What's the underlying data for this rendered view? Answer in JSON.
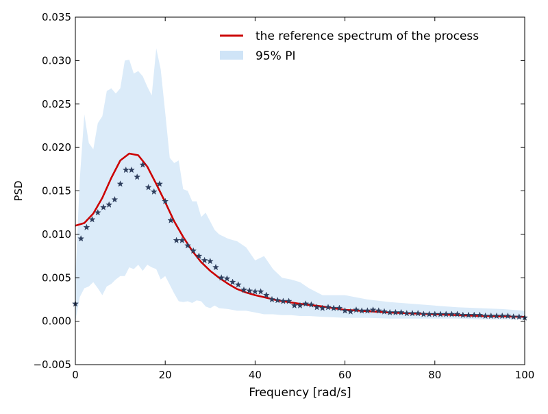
{
  "chart_data": {
    "type": "line",
    "xlabel": "Frequency [rad/s]",
    "ylabel": "PSD",
    "xlim": [
      0,
      100
    ],
    "ylim": [
      -0.005,
      0.035
    ],
    "x_ticks": [
      0,
      20,
      40,
      60,
      80,
      100
    ],
    "y_ticks": [
      -0.005,
      0.0,
      0.005,
      0.01,
      0.015,
      0.02,
      0.025,
      0.03,
      0.035
    ],
    "x_tick_labels": [
      "0",
      "20",
      "40",
      "60",
      "80",
      "100"
    ],
    "y_tick_labels": [
      "−0.005",
      "0.000",
      "0.005",
      "0.010",
      "0.015",
      "0.020",
      "0.025",
      "0.030",
      "0.035"
    ],
    "grid": false,
    "legend_position": "top-right",
    "legend": [
      {
        "label": "the reference spectrum of the process",
        "kind": "line",
        "color": "#cc0000"
      },
      {
        "label": "95% PI",
        "kind": "band",
        "color": "#cfe4f7"
      }
    ],
    "series": [
      {
        "name": "the reference spectrum of the process",
        "kind": "line",
        "color": "#cc0000",
        "x": [
          0,
          2,
          4,
          6,
          8,
          10,
          12,
          14,
          16,
          18,
          20,
          22,
          24,
          26,
          28,
          30,
          32,
          34,
          36,
          38,
          40,
          45,
          50,
          55,
          60,
          70,
          80,
          90,
          100
        ],
        "y": [
          0.011,
          0.0113,
          0.0124,
          0.0142,
          0.0165,
          0.0185,
          0.0193,
          0.0191,
          0.0178,
          0.0158,
          0.0137,
          0.0115,
          0.0097,
          0.0081,
          0.0068,
          0.0058,
          0.005,
          0.0043,
          0.0037,
          0.0033,
          0.003,
          0.0024,
          0.002,
          0.0017,
          0.0013,
          0.001,
          0.0008,
          0.0006,
          0.0005
        ]
      },
      {
        "name": "95% PI",
        "kind": "band",
        "color": "#cfe4f7",
        "x": [
          0,
          1,
          2,
          3,
          4,
          5,
          6,
          7,
          8,
          9,
          10,
          11,
          12,
          13,
          14,
          15,
          16,
          17,
          18,
          19,
          20,
          21,
          22,
          23,
          24,
          25,
          26,
          27,
          28,
          29,
          30,
          31,
          32,
          34,
          36,
          38,
          40,
          42,
          44,
          46,
          48,
          50,
          52,
          55,
          60,
          65,
          70,
          75,
          80,
          85,
          90,
          95,
          100
        ],
        "lower": [
          0.0,
          0.0028,
          0.0038,
          0.004,
          0.0045,
          0.0038,
          0.003,
          0.004,
          0.0043,
          0.0048,
          0.0052,
          0.0052,
          0.0062,
          0.006,
          0.0065,
          0.0058,
          0.0065,
          0.0062,
          0.006,
          0.0048,
          0.0052,
          0.0042,
          0.0032,
          0.0023,
          0.0022,
          0.0023,
          0.0021,
          0.0024,
          0.0023,
          0.0017,
          0.0015,
          0.0018,
          0.0015,
          0.0014,
          0.0012,
          0.0012,
          0.001,
          0.0008,
          0.0008,
          0.0007,
          0.0007,
          0.0006,
          0.0006,
          0.0005,
          0.0004,
          0.0004,
          0.0003,
          0.0003,
          0.0003,
          0.0003,
          0.0002,
          0.0002,
          0.0002
        ],
        "upper": [
          0.005,
          0.0165,
          0.0238,
          0.0205,
          0.0198,
          0.0228,
          0.0236,
          0.0265,
          0.0268,
          0.0262,
          0.0268,
          0.03,
          0.0301,
          0.0285,
          0.0288,
          0.0282,
          0.027,
          0.026,
          0.0314,
          0.029,
          0.024,
          0.0188,
          0.0182,
          0.0185,
          0.0152,
          0.015,
          0.0138,
          0.0138,
          0.012,
          0.0125,
          0.0115,
          0.0105,
          0.01,
          0.0095,
          0.0092,
          0.0085,
          0.007,
          0.0075,
          0.006,
          0.005,
          0.0048,
          0.0045,
          0.0038,
          0.003,
          0.003,
          0.0025,
          0.0022,
          0.002,
          0.0018,
          0.0016,
          0.0015,
          0.0014,
          0.0012
        ]
      },
      {
        "name": "",
        "kind": "scatter",
        "marker": "star",
        "color": "#2f3f5e",
        "x": [
          0,
          1.25,
          2.5,
          3.75,
          5,
          6.25,
          7.5,
          8.75,
          10,
          11.25,
          12.5,
          13.75,
          15,
          16.25,
          17.5,
          18.75,
          20,
          21.25,
          22.5,
          23.75,
          25,
          26.25,
          27.5,
          28.75,
          30,
          31.25,
          32.5,
          33.75,
          35,
          36.25,
          37.5,
          38.75,
          40,
          41.25,
          42.5,
          43.75,
          45,
          46.25,
          47.5,
          48.75,
          50,
          51.25,
          52.5,
          53.75,
          55,
          56.25,
          57.5,
          58.75,
          60,
          61.25,
          62.5,
          63.75,
          65,
          66.25,
          67.5,
          68.75,
          70,
          71.25,
          72.5,
          73.75,
          75,
          76.25,
          77.5,
          78.75,
          80,
          81.25,
          82.5,
          83.75,
          85,
          86.25,
          87.5,
          88.75,
          90,
          91.25,
          92.5,
          93.75,
          95,
          96.25,
          97.5,
          98.75,
          100
        ],
        "y": [
          0.002,
          0.0095,
          0.0108,
          0.0117,
          0.0125,
          0.0131,
          0.0134,
          0.014,
          0.0158,
          0.0174,
          0.0174,
          0.0166,
          0.018,
          0.0154,
          0.0149,
          0.0158,
          0.0138,
          0.0116,
          0.0093,
          0.0093,
          0.0087,
          0.0081,
          0.0075,
          0.007,
          0.0069,
          0.0062,
          0.005,
          0.0049,
          0.0045,
          0.0042,
          0.0036,
          0.0035,
          0.0034,
          0.0034,
          0.003,
          0.0025,
          0.0024,
          0.0023,
          0.0023,
          0.0018,
          0.0018,
          0.002,
          0.0019,
          0.0016,
          0.0015,
          0.0016,
          0.0015,
          0.0015,
          0.0012,
          0.0011,
          0.0013,
          0.0012,
          0.0012,
          0.0013,
          0.0012,
          0.0011,
          0.001,
          0.001,
          0.001,
          0.0009,
          0.0009,
          0.0009,
          0.0008,
          0.0008,
          0.0008,
          0.0008,
          0.0008,
          0.0008,
          0.0008,
          0.0007,
          0.0007,
          0.0007,
          0.0007,
          0.0006,
          0.0006,
          0.0006,
          0.0006,
          0.0006,
          0.0005,
          0.0005,
          0.0004
        ]
      }
    ]
  }
}
